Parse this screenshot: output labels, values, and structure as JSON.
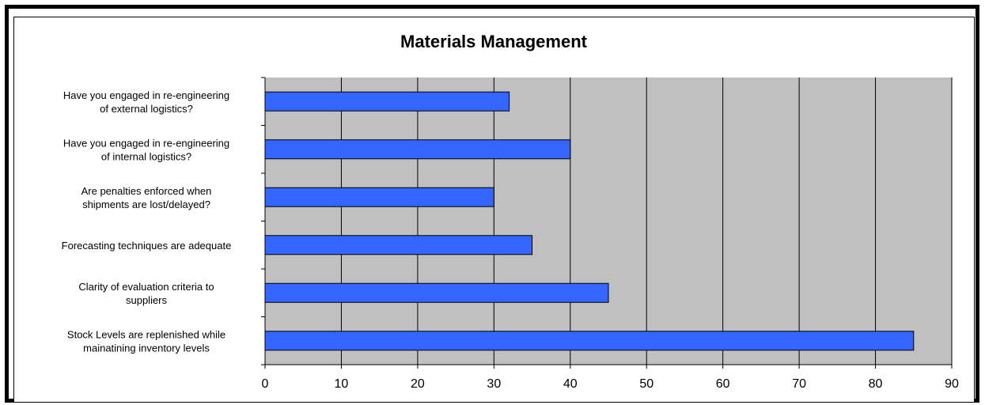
{
  "chart_data": {
    "type": "bar",
    "orientation": "horizontal",
    "title": "Materials Management",
    "xlabel": "",
    "ylabel": "",
    "xlim": [
      0,
      90
    ],
    "xticks": [
      0,
      10,
      20,
      30,
      40,
      50,
      60,
      70,
      80,
      90
    ],
    "grid": true,
    "legend": "none",
    "categories": [
      [
        "Have you engaged in re-engineering",
        "of external logistics?"
      ],
      [
        "Have you engaged in re-engineering",
        "of internal logistics?"
      ],
      [
        "Are penalties enforced when",
        "shipments are lost/delayed?"
      ],
      [
        "Forecasting techniques are adequate"
      ],
      [
        "Clarity of evaluation criteria to",
        "suppliers"
      ],
      [
        "Stock Levels are replenished while",
        "mainatining inventory levels"
      ]
    ],
    "values": [
      32,
      40,
      30,
      35,
      45,
      85
    ],
    "colors": {
      "bar": "#3366ff",
      "plot_background": "#c0c0c0",
      "gridline": "#000000"
    }
  }
}
